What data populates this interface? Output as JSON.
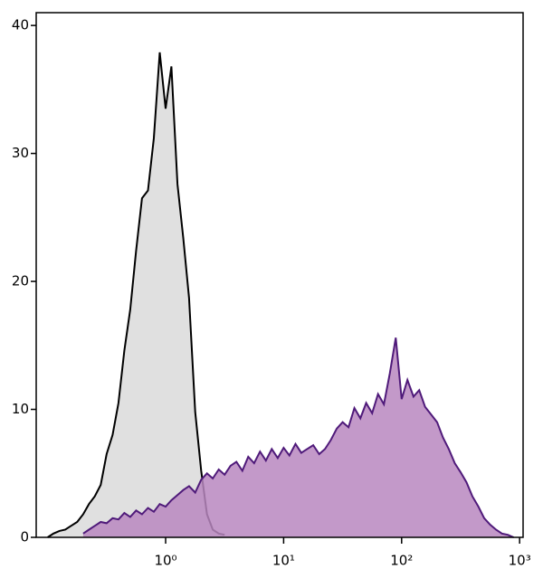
{
  "chart_data": {
    "type": "histogram-overlay",
    "x": [
      0.1,
      0.112,
      0.126,
      0.141,
      0.158,
      0.178,
      0.2,
      0.224,
      0.251,
      0.282,
      0.316,
      0.355,
      0.398,
      0.447,
      0.501,
      0.562,
      0.631,
      0.708,
      0.794,
      0.891,
      1,
      1.12,
      1.26,
      1.41,
      1.58,
      1.78,
      2,
      2.24,
      2.51,
      2.82,
      3.16,
      3.55,
      3.98,
      4.47,
      5.01,
      5.62,
      6.31,
      7.08,
      7.94,
      8.91,
      10,
      11.2,
      12.6,
      14.1,
      15.8,
      17.8,
      20,
      22.4,
      25.1,
      28.2,
      31.6,
      35.5,
      39.8,
      44.7,
      50.1,
      56.2,
      63.1,
      70.8,
      79.4,
      89.1,
      100,
      112,
      126,
      141,
      158,
      178,
      200,
      224,
      251,
      282,
      316,
      355,
      398,
      447,
      501,
      562,
      631,
      708,
      794,
      891,
      1000
    ],
    "series": [
      {
        "color": "#e0e0e0",
        "stroke": "#000000",
        "values": [
          0,
          0.3,
          0.5,
          0.6,
          0.9,
          1.2,
          1.8,
          2.6,
          3.2,
          4.1,
          6.5,
          8.0,
          10.5,
          14.6,
          17.8,
          22.4,
          26.5,
          27.1,
          31.2,
          37.9,
          33.5,
          36.8,
          27.6,
          23.4,
          18.7,
          9.8,
          5.2,
          1.8,
          0.6,
          0.3,
          0.2,
          null,
          null,
          null,
          null,
          null,
          null,
          null,
          null,
          null,
          null,
          null,
          null,
          null,
          null,
          null,
          null,
          null,
          null,
          null,
          null,
          null,
          null,
          null,
          null,
          null,
          null,
          null,
          null,
          null,
          null,
          null,
          null,
          null,
          null,
          null,
          null,
          null,
          null,
          null,
          null,
          null,
          null,
          null,
          null,
          null,
          null,
          null,
          null,
          null,
          null
        ]
      },
      {
        "color": "#b987bf",
        "stroke": "#4f1a7a",
        "values": [
          null,
          null,
          null,
          null,
          null,
          null,
          0.3,
          0.6,
          0.9,
          1.2,
          1.1,
          1.5,
          1.4,
          1.9,
          1.6,
          2.1,
          1.8,
          2.3,
          2.0,
          2.6,
          2.4,
          2.9,
          3.3,
          3.7,
          4.0,
          3.5,
          4.5,
          5.0,
          4.6,
          5.3,
          4.9,
          5.6,
          5.9,
          5.2,
          6.3,
          5.8,
          6.7,
          6.0,
          6.9,
          6.2,
          7.0,
          6.4,
          7.3,
          6.6,
          6.9,
          7.2,
          6.5,
          6.9,
          7.6,
          8.5,
          9.0,
          8.6,
          10.1,
          9.3,
          10.5,
          9.7,
          11.2,
          10.4,
          12.8,
          15.6,
          10.8,
          12.3,
          11.0,
          11.5,
          10.2,
          9.6,
          9.0,
          7.8,
          6.9,
          5.8,
          5.1,
          4.3,
          3.2,
          2.4,
          1.5,
          1.0,
          0.6,
          0.3,
          0.2,
          0,
          null
        ]
      }
    ],
    "xscale": "log",
    "xlim": [
      0.08,
      1070
    ],
    "xticks": [
      {
        "value": 1,
        "label": "10⁰"
      },
      {
        "value": 10,
        "label": "10¹"
      },
      {
        "value": 100,
        "label": "10²"
      },
      {
        "value": 1000,
        "label": "10³"
      }
    ],
    "ylim": [
      0,
      41
    ],
    "yticks": [
      0,
      10,
      20,
      30,
      40
    ]
  }
}
